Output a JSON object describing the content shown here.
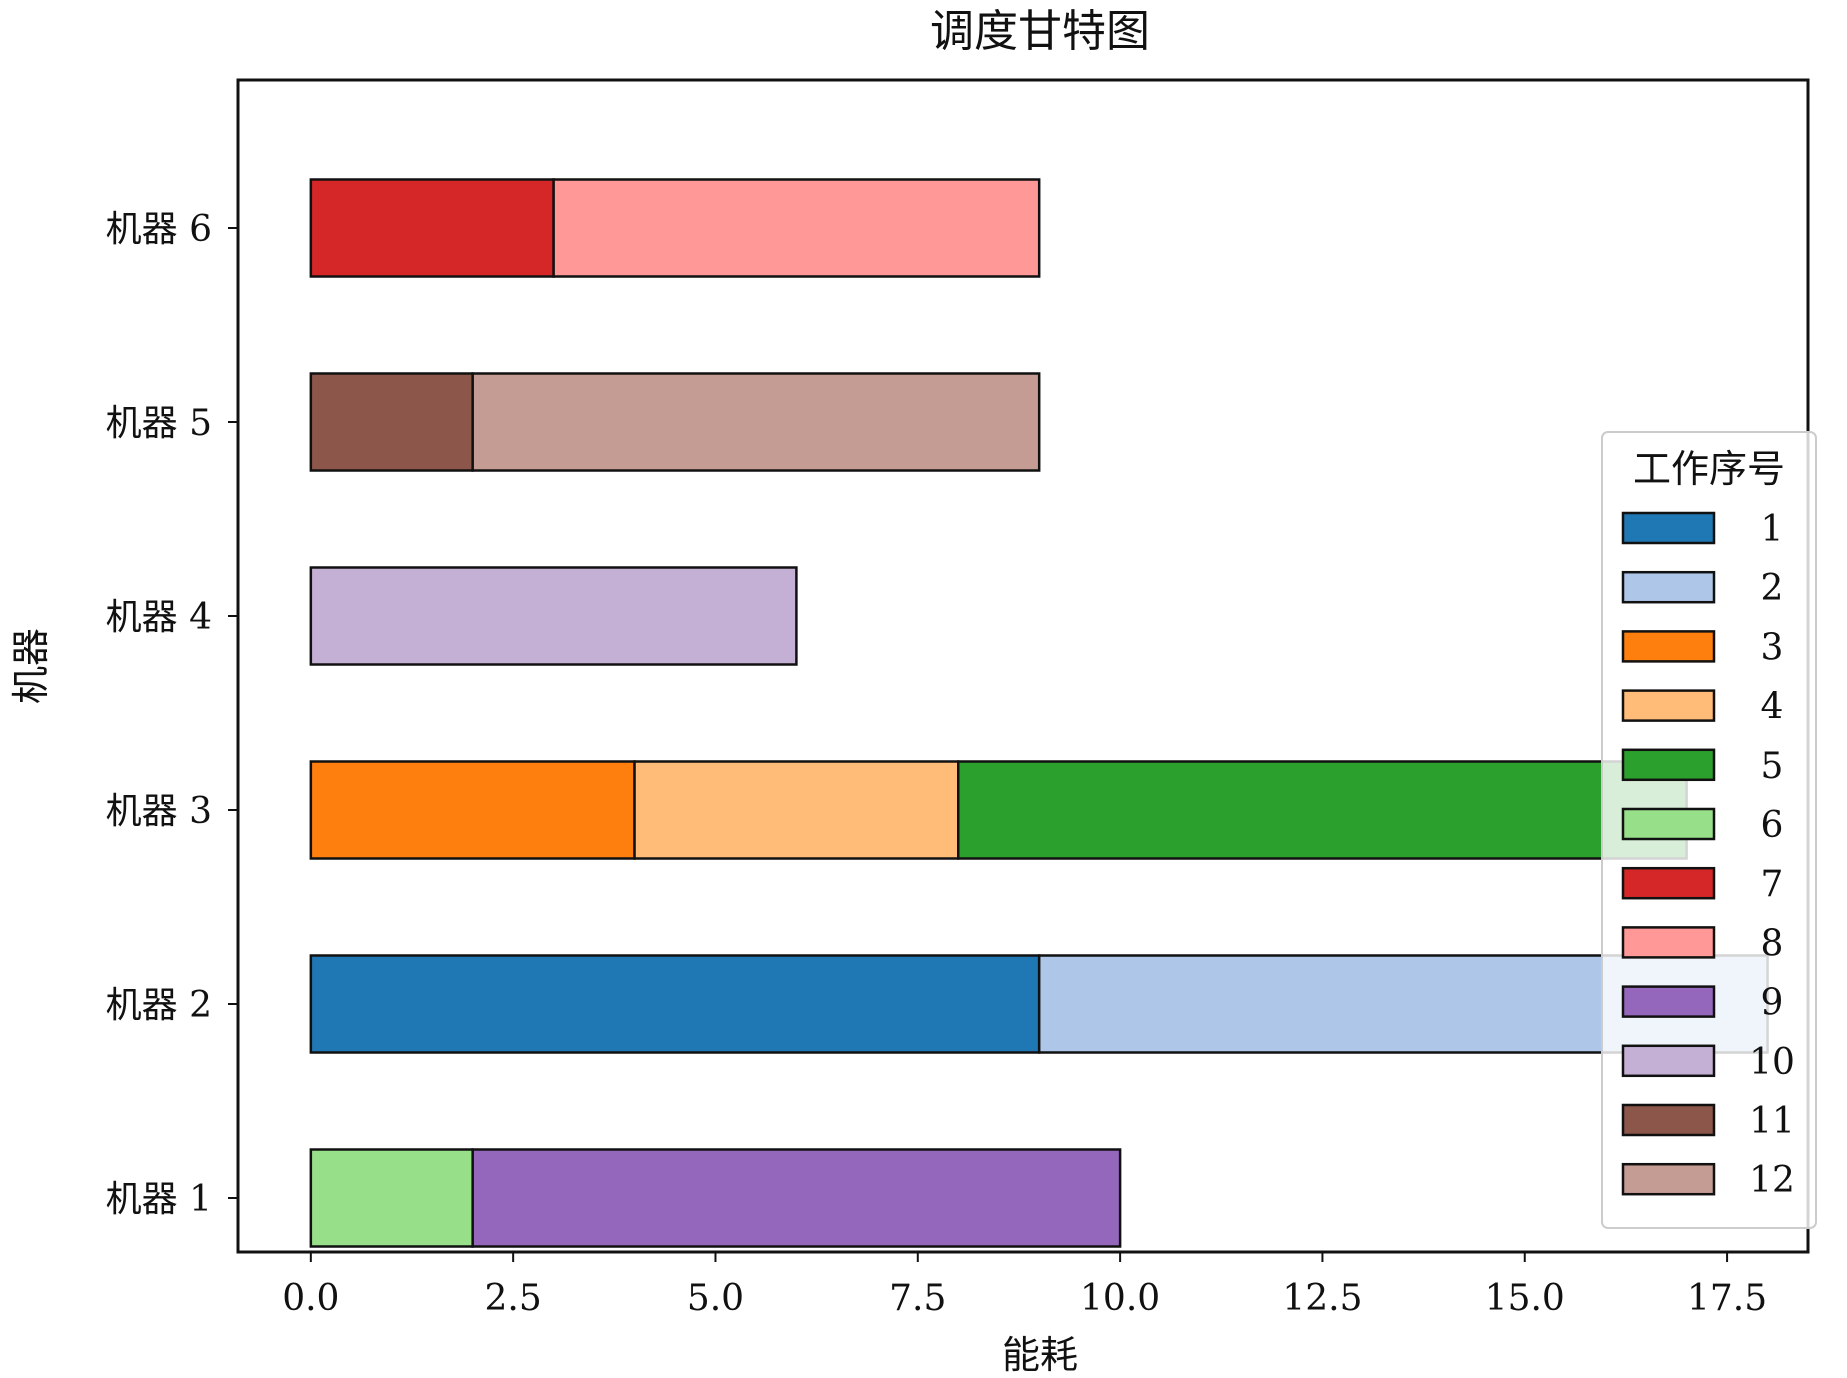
{
  "chart_data": {
    "type": "bar",
    "orientation": "horizontal-stacked",
    "title": "调度甘特图",
    "xlabel": "能耗",
    "ylabel": "机器",
    "xlim": [
      -0.9,
      18.5
    ],
    "x_ticks": [
      "0.0",
      "2.5",
      "5.0",
      "7.5",
      "10.0",
      "12.5",
      "15.0",
      "17.5"
    ],
    "categories": [
      "机器 1",
      "机器 2",
      "机器 3",
      "机器 4",
      "机器 5",
      "机器 6"
    ],
    "legend": {
      "title": "工作序号",
      "placement": "right",
      "entries": [
        {
          "label": "1",
          "color": "#1f77b4"
        },
        {
          "label": "2",
          "color": "#aec7e8"
        },
        {
          "label": "3",
          "color": "#ff7f0e"
        },
        {
          "label": "4",
          "color": "#ffbb78"
        },
        {
          "label": "5",
          "color": "#2ca02c"
        },
        {
          "label": "6",
          "color": "#98df8a"
        },
        {
          "label": "7",
          "color": "#d62728"
        },
        {
          "label": "8",
          "color": "#ff9896"
        },
        {
          "label": "9",
          "color": "#9467bd"
        },
        {
          "label": "10",
          "color": "#c5b0d5"
        },
        {
          "label": "11",
          "color": "#8c564b"
        },
        {
          "label": "12",
          "color": "#c49c94"
        }
      ]
    },
    "segments": [
      {
        "machine": "机器 1",
        "job": "6",
        "start": 0,
        "end": 2
      },
      {
        "machine": "机器 1",
        "job": "9",
        "start": 2,
        "end": 10
      },
      {
        "machine": "机器 2",
        "job": "1",
        "start": 0,
        "end": 9
      },
      {
        "machine": "机器 2",
        "job": "2",
        "start": 9,
        "end": 18
      },
      {
        "machine": "机器 3",
        "job": "3",
        "start": 0,
        "end": 4
      },
      {
        "machine": "机器 3",
        "job": "4",
        "start": 4,
        "end": 8
      },
      {
        "machine": "机器 3",
        "job": "5",
        "start": 8,
        "end": 17
      },
      {
        "machine": "机器 4",
        "job": "10",
        "start": 0,
        "end": 6
      },
      {
        "machine": "机器 5",
        "job": "11",
        "start": 0,
        "end": 2
      },
      {
        "machine": "机器 5",
        "job": "12",
        "start": 2,
        "end": 9
      },
      {
        "machine": "机器 6",
        "job": "7",
        "start": 0,
        "end": 3
      },
      {
        "machine": "机器 6",
        "job": "8",
        "start": 3,
        "end": 9
      }
    ]
  }
}
